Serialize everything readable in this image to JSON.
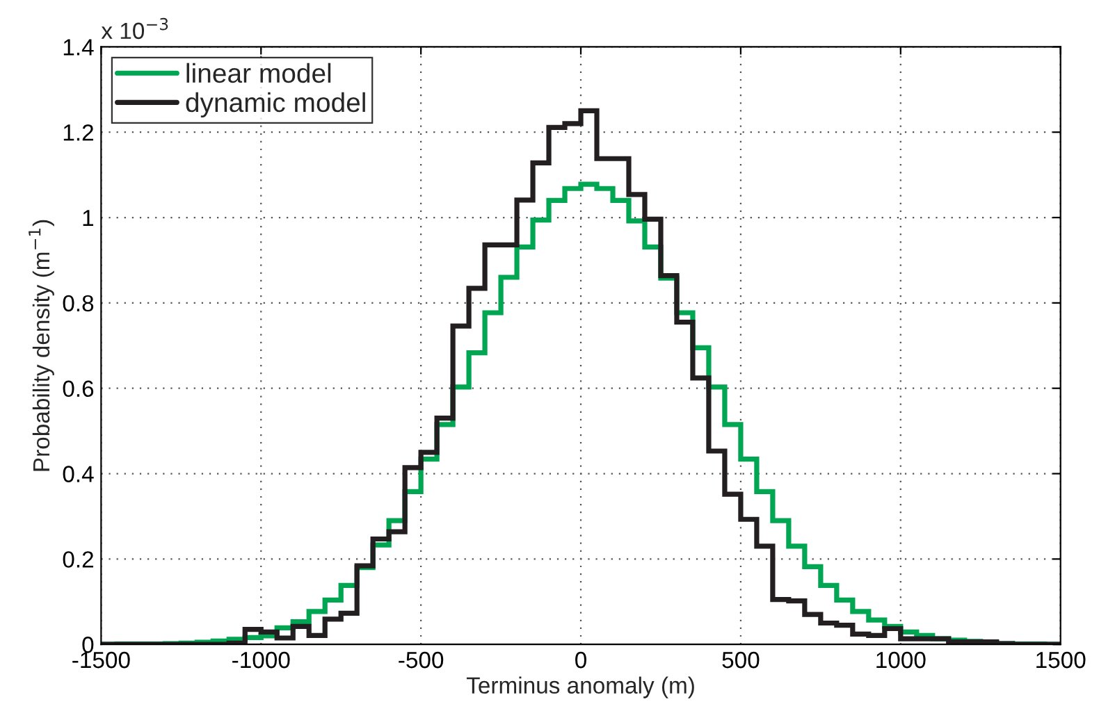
{
  "chart_data": {
    "type": "histogram",
    "xlabel": "Terminus anomaly (m)",
    "ylabel": "Probability density (m$^{−1}$)",
    "annotations": [
      "x 10$^{−3}$"
    ],
    "bins": [
      -1500,
      -1450,
      -1400,
      -1350,
      -1300,
      -1250,
      -1200,
      -1150,
      -1100,
      -1050,
      -1000,
      -950,
      -900,
      -850,
      -800,
      -750,
      -700,
      -650,
      -600,
      -550,
      -500,
      -450,
      -400,
      -350,
      -300,
      -250,
      -200,
      -150,
      -100,
      -50,
      0,
      50,
      100,
      150,
      200,
      250,
      300,
      350,
      400,
      450,
      500,
      550,
      600,
      650,
      700,
      750,
      800,
      850,
      900,
      950,
      1000,
      1050,
      1100,
      1150,
      1200,
      1250,
      1300,
      1350,
      1400,
      1450,
      1500
    ],
    "series": [
      {
        "name": "linear model",
        "color": "#00a651",
        "values": [
          0,
          0.001,
          0.001,
          0.001,
          0.002,
          0.003,
          0.005,
          0.008,
          0.012,
          0.016,
          0.02,
          0.039,
          0.053,
          0.077,
          0.104,
          0.138,
          0.18,
          0.233,
          0.29,
          0.358,
          0.434,
          0.515,
          0.603,
          0.683,
          0.777,
          0.86,
          0.931,
          0.994,
          1.04,
          1.068,
          1.078,
          1.068,
          1.04,
          0.992,
          0.931,
          0.858,
          0.777,
          0.695,
          0.603,
          0.515,
          0.434,
          0.358,
          0.29,
          0.23,
          0.182,
          0.138,
          0.104,
          0.077,
          0.057,
          0.042,
          0.029,
          0.021,
          0.013,
          0.01,
          0.007,
          0.004,
          0.002,
          0.001,
          0.001,
          0
        ]
      },
      {
        "name": "dynamic model",
        "color": "#231f20",
        "values": [
          0,
          0,
          0,
          0,
          0,
          0,
          0,
          0,
          0.003,
          0.035,
          0.029,
          0.015,
          0.042,
          0.021,
          0.059,
          0.073,
          0.184,
          0.247,
          0.264,
          0.414,
          0.45,
          0.53,
          0.746,
          0.834,
          0.936,
          0.936,
          1.041,
          1.128,
          1.211,
          1.22,
          1.25,
          1.138,
          1.138,
          1.054,
          0.996,
          0.864,
          0.755,
          0.624,
          0.453,
          0.352,
          0.293,
          0.23,
          0.105,
          0.102,
          0.07,
          0.05,
          0.045,
          0.024,
          0.021,
          0.037,
          0.013,
          0.013,
          0.013,
          0.006,
          0.006,
          0.006,
          0.002,
          0,
          0,
          0
        ]
      }
    ],
    "xlim": [
      -1500,
      1500
    ],
    "xticks": [
      -1500,
      -1000,
      -500,
      0,
      500,
      1000,
      1500
    ],
    "ylim": [
      0,
      1.4
    ],
    "yticks": [
      0,
      0.2,
      0.4,
      0.6,
      0.8,
      1,
      1.2,
      1.4
    ],
    "grid": true,
    "legend": "top left",
    "line_style": "solid"
  }
}
